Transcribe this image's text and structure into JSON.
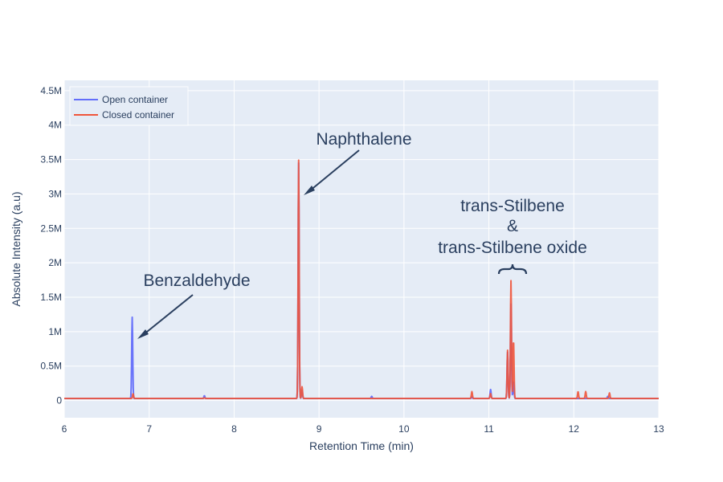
{
  "chart_data": {
    "type": "line",
    "title": "",
    "xlabel": "Retention Time (min)",
    "ylabel": "Absolute Intensity (a.u)",
    "xlim": [
      6,
      13
    ],
    "ylim": [
      -250000,
      4650000
    ],
    "x_ticks": [
      6,
      7,
      8,
      9,
      10,
      11,
      12,
      13
    ],
    "x_tick_labels": [
      "6",
      "7",
      "8",
      "9",
      "10",
      "11",
      "12",
      "13"
    ],
    "y_ticks": [
      0,
      500000,
      1000000,
      1500000,
      2000000,
      2500000,
      3000000,
      3500000,
      4000000,
      4500000
    ],
    "y_tick_labels": [
      "0",
      "0.5M",
      "1M",
      "1.5M",
      "2M",
      "2.5M",
      "3M",
      "3.5M",
      "4M",
      "4.5M"
    ],
    "grid": true,
    "legend_position": "top-left",
    "baseline": 30000,
    "series": [
      {
        "name": "Open container",
        "color": "#636efa",
        "peaks": [
          {
            "x": 6.8,
            "y": 1210000
          },
          {
            "x": 7.65,
            "y": 70000
          },
          {
            "x": 8.76,
            "y": 3450000
          },
          {
            "x": 8.8,
            "y": 150000
          },
          {
            "x": 9.62,
            "y": 60000
          },
          {
            "x": 10.8,
            "y": 50000
          },
          {
            "x": 11.02,
            "y": 160000
          },
          {
            "x": 11.22,
            "y": 700000
          },
          {
            "x": 11.26,
            "y": 1400000
          },
          {
            "x": 11.29,
            "y": 280000
          },
          {
            "x": 12.4,
            "y": 60000
          }
        ]
      },
      {
        "name": "Closed container",
        "color": "#ef553b",
        "peaks": [
          {
            "x": 6.81,
            "y": 100000
          },
          {
            "x": 7.65,
            "y": 40000
          },
          {
            "x": 8.76,
            "y": 3490000
          },
          {
            "x": 8.8,
            "y": 200000
          },
          {
            "x": 10.8,
            "y": 130000
          },
          {
            "x": 11.02,
            "y": 100000
          },
          {
            "x": 11.22,
            "y": 730000
          },
          {
            "x": 11.26,
            "y": 1740000
          },
          {
            "x": 11.29,
            "y": 880000
          },
          {
            "x": 12.05,
            "y": 130000
          },
          {
            "x": 12.14,
            "y": 130000
          },
          {
            "x": 12.42,
            "y": 110000
          }
        ]
      }
    ],
    "annotations": [
      {
        "text": "Benzaldehyde",
        "x": 6.85,
        "y": 900000
      },
      {
        "text": "Naphthalene",
        "x": 8.85,
        "y": 3000000
      },
      {
        "text": "trans-Stilbene",
        "x": 11.27,
        "y": 1850000
      },
      {
        "text": "&",
        "x": 11.27,
        "y": 1850000
      },
      {
        "text": "trans-Stilbene oxide",
        "x": 11.27,
        "y": 1850000
      }
    ]
  }
}
